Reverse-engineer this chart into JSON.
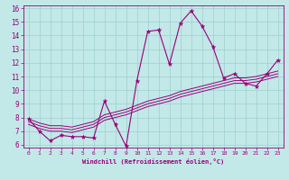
{
  "title": "",
  "xlabel": "Windchill (Refroidissement éolien,°C)",
  "bg_color": "#c2e8e8",
  "line_color": "#990077",
  "grid_color": "#9dcfcf",
  "xlim": [
    -0.5,
    23.5
  ],
  "ylim": [
    5.8,
    16.2
  ],
  "xticks": [
    0,
    1,
    2,
    3,
    4,
    5,
    6,
    7,
    8,
    9,
    10,
    11,
    12,
    13,
    14,
    15,
    16,
    17,
    18,
    19,
    20,
    21,
    22,
    23
  ],
  "yticks": [
    6,
    7,
    8,
    9,
    10,
    11,
    12,
    13,
    14,
    15,
    16
  ],
  "main_x": [
    0,
    1,
    2,
    3,
    4,
    5,
    6,
    7,
    8,
    9,
    10,
    11,
    12,
    13,
    14,
    15,
    16,
    17,
    18,
    19,
    20,
    21,
    22,
    23
  ],
  "main_y": [
    7.9,
    7.0,
    6.3,
    6.7,
    6.6,
    6.6,
    6.5,
    9.2,
    7.5,
    5.9,
    10.7,
    14.3,
    14.4,
    11.9,
    14.9,
    15.8,
    14.7,
    13.2,
    10.9,
    11.2,
    10.5,
    10.3,
    11.2,
    12.2
  ],
  "line2_x": [
    0,
    1,
    2,
    3,
    4,
    5,
    6,
    7,
    8,
    9,
    10,
    11,
    12,
    13,
    14,
    15,
    16,
    17,
    18,
    19,
    20,
    21,
    22,
    23
  ],
  "line2_y": [
    7.5,
    7.2,
    7.0,
    7.0,
    6.9,
    7.1,
    7.3,
    7.8,
    8.0,
    8.2,
    8.5,
    8.8,
    9.0,
    9.2,
    9.5,
    9.7,
    9.9,
    10.1,
    10.3,
    10.5,
    10.5,
    10.6,
    10.8,
    11.0
  ],
  "line3_x": [
    0,
    1,
    2,
    3,
    4,
    5,
    6,
    7,
    8,
    9,
    10,
    11,
    12,
    13,
    14,
    15,
    16,
    17,
    18,
    19,
    20,
    21,
    22,
    23
  ],
  "line3_y": [
    7.7,
    7.4,
    7.2,
    7.2,
    7.1,
    7.3,
    7.5,
    8.0,
    8.2,
    8.4,
    8.7,
    9.0,
    9.2,
    9.4,
    9.7,
    9.9,
    10.1,
    10.3,
    10.5,
    10.7,
    10.7,
    10.8,
    11.0,
    11.2
  ],
  "line4_x": [
    0,
    1,
    2,
    3,
    4,
    5,
    6,
    7,
    8,
    9,
    10,
    11,
    12,
    13,
    14,
    15,
    16,
    17,
    18,
    19,
    20,
    21,
    22,
    23
  ],
  "line4_y": [
    7.9,
    7.6,
    7.4,
    7.4,
    7.3,
    7.5,
    7.7,
    8.2,
    8.4,
    8.6,
    8.9,
    9.2,
    9.4,
    9.6,
    9.9,
    10.1,
    10.3,
    10.5,
    10.7,
    10.9,
    10.9,
    11.0,
    11.2,
    11.4
  ]
}
